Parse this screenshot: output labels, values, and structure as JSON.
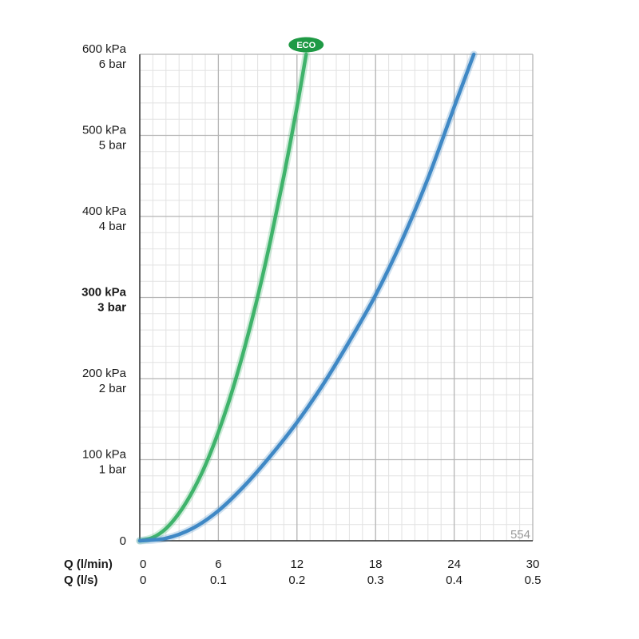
{
  "chart_data": {
    "type": "line",
    "x_unit_rows": [
      {
        "label": "Q (l/min)",
        "ticks": [
          "0",
          "6",
          "12",
          "18",
          "24",
          "30"
        ]
      },
      {
        "label": "Q (l/s)",
        "ticks": [
          "0",
          "0.1",
          "0.2",
          "0.3",
          "0.4",
          "0.5"
        ]
      }
    ],
    "xlim": [
      0,
      30
    ],
    "ylim": [
      0,
      600
    ],
    "y_ticks": [
      {
        "value": 600,
        "kpa": "600 kPa",
        "bar": "6 bar",
        "bold": false
      },
      {
        "value": 500,
        "kpa": "500 kPa",
        "bar": "5 bar",
        "bold": false
      },
      {
        "value": 400,
        "kpa": "400 kPa",
        "bar": "4 bar",
        "bold": false
      },
      {
        "value": 300,
        "kpa": "300 kPa",
        "bar": "3 bar",
        "bold": true
      },
      {
        "value": 200,
        "kpa": "200 kPa",
        "bar": "2 bar",
        "bold": false
      },
      {
        "value": 100,
        "kpa": "100 kPa",
        "bar": "1 bar",
        "bold": false
      },
      {
        "value": 0,
        "kpa": "0",
        "bar": "",
        "bold": false
      }
    ],
    "grid": true,
    "minor_grid": true,
    "series": [
      {
        "color": "#3fb36b",
        "badge": "ECO",
        "x": [
          0,
          1,
          2,
          3,
          4,
          5,
          6,
          7,
          8,
          9,
          10,
          11,
          12,
          12.7
        ],
        "y": [
          0,
          4,
          15,
          34,
          60,
          93,
          134,
          182,
          238,
          301,
          372,
          450,
          535,
          600
        ]
      },
      {
        "color": "#3f88c5",
        "x": [
          0,
          2,
          4,
          6,
          8,
          10,
          12,
          14,
          16,
          18,
          20,
          22,
          24,
          25.5
        ],
        "y": [
          0,
          3,
          15,
          37,
          68,
          105,
          146,
          193,
          246,
          303,
          370,
          447,
          535,
          600
        ]
      }
    ],
    "code_label": "554"
  }
}
